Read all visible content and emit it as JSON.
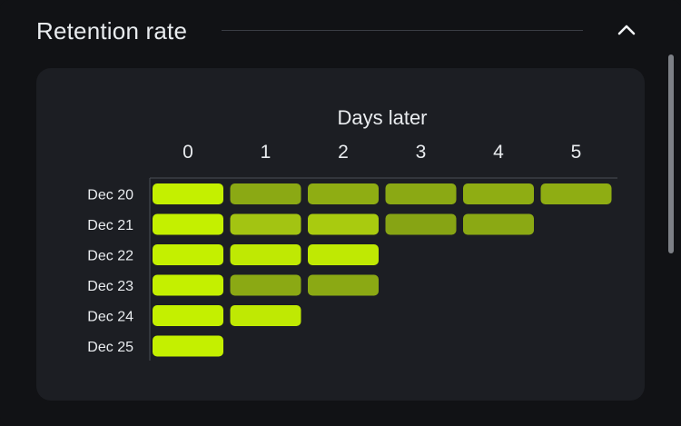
{
  "section": {
    "title": "Retention rate",
    "collapse_icon": "chevron-up-icon"
  },
  "colors": {
    "background": "#111215",
    "card": "#1c1e23",
    "text": "#e9ecef",
    "axis": "#4a4d54",
    "retention_high": "#c4f000",
    "retention_mid": "#a3c412",
    "retention_low": "#87a414"
  },
  "chart_data": {
    "type": "heatmap",
    "xlabel": "Days later",
    "x": [
      "0",
      "1",
      "2",
      "3",
      "4",
      "5"
    ],
    "y": [
      "Dec 20",
      "Dec 21",
      "Dec 22",
      "Dec 23",
      "Dec 24",
      "Dec 25"
    ],
    "cells": [
      [
        1.0,
        0.45,
        0.5,
        0.45,
        0.5,
        0.5
      ],
      [
        1.0,
        0.7,
        0.75,
        0.4,
        0.45
      ],
      [
        1.0,
        0.95,
        0.95
      ],
      [
        1.0,
        0.45,
        0.45
      ],
      [
        1.0,
        0.95
      ],
      [
        1.0
      ]
    ]
  }
}
